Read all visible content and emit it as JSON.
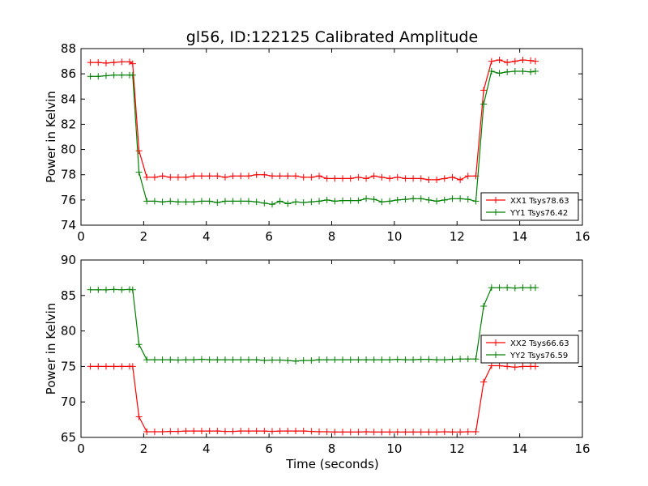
{
  "figure": {
    "title": "gl56, ID:122125 Calibrated Amplitude"
  },
  "chart_data": [
    {
      "type": "line",
      "title": "gl56, ID:122125 Calibrated Amplitude",
      "xlabel": "",
      "ylabel": "Power in Kelvin",
      "xlim": [
        0,
        16
      ],
      "ylim": [
        74,
        88
      ],
      "xticks": [
        0,
        2,
        4,
        6,
        8,
        10,
        12,
        14,
        16
      ],
      "yticks": [
        74,
        76,
        78,
        80,
        82,
        84,
        86,
        88
      ],
      "grid": false,
      "legend_position": "lower-right",
      "x": [
        0.3,
        0.55,
        0.8,
        1.05,
        1.3,
        1.55,
        1.65,
        1.85,
        2.1,
        2.35,
        2.6,
        2.85,
        3.1,
        3.35,
        3.6,
        3.85,
        4.1,
        4.35,
        4.6,
        4.85,
        5.1,
        5.35,
        5.6,
        5.85,
        6.1,
        6.35,
        6.6,
        6.85,
        7.1,
        7.35,
        7.6,
        7.85,
        8.1,
        8.35,
        8.6,
        8.85,
        9.1,
        9.35,
        9.6,
        9.85,
        10.1,
        10.35,
        10.6,
        10.85,
        11.1,
        11.35,
        11.6,
        11.85,
        12.1,
        12.35,
        12.6,
        12.85,
        13.1,
        13.35,
        13.6,
        13.85,
        14.1,
        14.35,
        14.5
      ],
      "series": [
        {
          "name": "XX1 Tsys78.63",
          "color": "#ff0000",
          "values": [
            86.9,
            86.9,
            86.85,
            86.9,
            86.95,
            86.95,
            86.8,
            79.9,
            77.8,
            77.8,
            77.9,
            77.8,
            77.8,
            77.8,
            77.9,
            77.9,
            77.9,
            77.9,
            77.8,
            77.9,
            77.9,
            77.9,
            78.0,
            78.0,
            77.9,
            77.9,
            77.9,
            77.9,
            77.8,
            77.8,
            77.9,
            77.7,
            77.7,
            77.7,
            77.7,
            77.8,
            77.7,
            77.9,
            77.8,
            77.7,
            77.8,
            77.7,
            77.7,
            77.7,
            77.6,
            77.6,
            77.7,
            77.8,
            77.6,
            77.9,
            77.9,
            84.7,
            87.0,
            87.1,
            86.9,
            87.0,
            87.1,
            87.05,
            87.0
          ]
        },
        {
          "name": "YY1 Tsys76.42",
          "color": "#008000",
          "values": [
            85.8,
            85.8,
            85.85,
            85.9,
            85.9,
            85.9,
            85.9,
            78.2,
            75.9,
            75.9,
            75.85,
            75.9,
            75.85,
            75.85,
            75.85,
            75.9,
            75.9,
            75.8,
            75.9,
            75.9,
            75.9,
            75.9,
            75.85,
            75.75,
            75.65,
            75.9,
            75.7,
            75.85,
            75.8,
            75.85,
            75.9,
            76.0,
            75.9,
            75.95,
            75.95,
            75.95,
            76.1,
            76.05,
            75.85,
            75.9,
            76.0,
            76.05,
            76.1,
            76.1,
            76.0,
            75.9,
            76.0,
            76.1,
            76.1,
            76.05,
            75.9,
            83.6,
            86.2,
            86.05,
            86.15,
            86.2,
            86.2,
            86.15,
            86.2
          ]
        }
      ]
    },
    {
      "type": "line",
      "title": "",
      "xlabel": "Time (seconds)",
      "ylabel": "Power in Kelvin",
      "xlim": [
        0,
        16
      ],
      "ylim": [
        65,
        90
      ],
      "xticks": [
        0,
        2,
        4,
        6,
        8,
        10,
        12,
        14,
        16
      ],
      "yticks": [
        65,
        70,
        75,
        80,
        85,
        90
      ],
      "grid": false,
      "legend_position": "right",
      "x": [
        0.3,
        0.55,
        0.8,
        1.05,
        1.3,
        1.55,
        1.65,
        1.85,
        2.1,
        2.35,
        2.6,
        2.85,
        3.1,
        3.35,
        3.6,
        3.85,
        4.1,
        4.35,
        4.6,
        4.85,
        5.1,
        5.35,
        5.6,
        5.85,
        6.1,
        6.35,
        6.6,
        6.85,
        7.1,
        7.35,
        7.6,
        7.85,
        8.1,
        8.35,
        8.6,
        8.85,
        9.1,
        9.35,
        9.6,
        9.85,
        10.1,
        10.35,
        10.6,
        10.85,
        11.1,
        11.35,
        11.6,
        11.85,
        12.1,
        12.35,
        12.6,
        12.85,
        13.1,
        13.35,
        13.6,
        13.85,
        14.1,
        14.35,
        14.5
      ],
      "series": [
        {
          "name": "XX2 Tsys66.63",
          "color": "#ff0000",
          "values": [
            75.0,
            75.0,
            75.0,
            75.0,
            75.0,
            75.0,
            75.0,
            67.9,
            65.8,
            65.8,
            65.8,
            65.85,
            65.85,
            65.9,
            65.9,
            65.9,
            65.9,
            65.9,
            65.85,
            65.85,
            65.9,
            65.9,
            65.9,
            65.9,
            65.85,
            65.9,
            65.9,
            65.9,
            65.9,
            65.85,
            65.8,
            65.8,
            65.75,
            65.75,
            65.75,
            65.75,
            65.8,
            65.75,
            65.75,
            65.75,
            65.75,
            65.75,
            65.75,
            65.75,
            65.75,
            65.75,
            65.8,
            65.75,
            65.75,
            65.8,
            65.8,
            72.8,
            75.1,
            75.1,
            75.0,
            74.9,
            75.0,
            75.0,
            75.0
          ]
        },
        {
          "name": "YY2 Tsys76.59",
          "color": "#008000",
          "values": [
            85.8,
            85.8,
            85.8,
            85.85,
            85.8,
            85.85,
            85.8,
            78.1,
            75.95,
            75.95,
            75.95,
            75.95,
            75.9,
            75.95,
            75.95,
            76.0,
            75.95,
            75.95,
            75.95,
            75.95,
            75.95,
            75.95,
            75.95,
            75.85,
            75.9,
            75.9,
            75.85,
            75.75,
            75.85,
            75.85,
            75.95,
            75.95,
            75.95,
            75.95,
            75.95,
            75.95,
            75.95,
            75.95,
            75.95,
            75.95,
            76.0,
            75.95,
            75.95,
            76.0,
            76.0,
            75.95,
            75.95,
            76.0,
            76.05,
            76.05,
            76.05,
            83.5,
            86.1,
            86.1,
            86.1,
            86.05,
            86.1,
            86.1,
            86.1
          ]
        }
      ]
    }
  ]
}
